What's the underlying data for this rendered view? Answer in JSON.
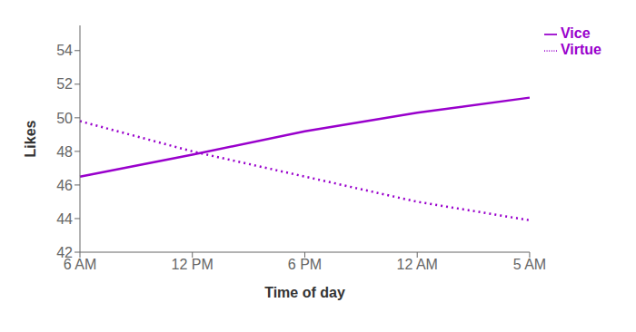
{
  "chart_data": {
    "type": "line",
    "xlabel": "Time of day",
    "ylabel": "Likes",
    "categories": [
      "6 AM",
      "12 PM",
      "6 PM",
      "12 AM",
      "5 AM"
    ],
    "series": [
      {
        "name": "Virtue",
        "color": "#9900cc",
        "line_style": "dotted",
        "values": [
          49.8,
          48.0,
          46.5,
          45.0,
          43.9
        ]
      },
      {
        "name": "Vice",
        "color": "#9900cc",
        "line_style": "solid",
        "values": [
          46.5,
          47.8,
          49.2,
          50.3,
          51.2
        ]
      }
    ],
    "ylim": [
      42,
      55.5
    ],
    "yticks": [
      42,
      44,
      46,
      48,
      50,
      52,
      54
    ],
    "legend": "upper right"
  }
}
